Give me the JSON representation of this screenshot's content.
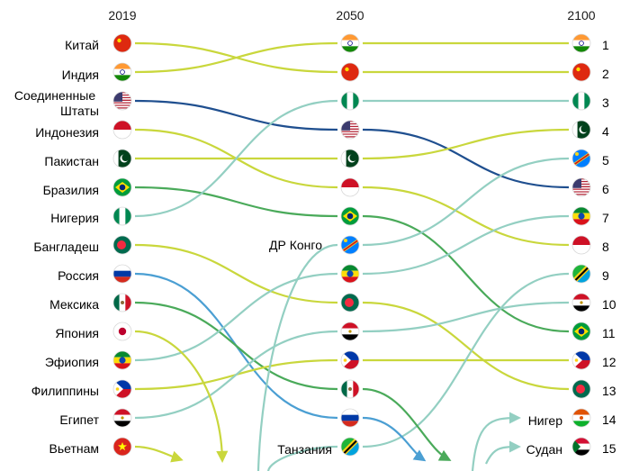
{
  "chart_data": {
    "type": "slope-ranking",
    "columns": [
      "2019",
      "2050",
      "2100"
    ],
    "country_labels_2019": [
      "Китай",
      "Индия",
      "Соединенные Штаты",
      "Индонезия",
      "Пакистан",
      "Бразилия",
      "Нигерия",
      "Бангладеш",
      "Россия",
      "Мексика",
      "Япония",
      "Эфиопия",
      "Филиппины",
      "Египет",
      "Вьетнам"
    ],
    "label_2050_drc": "ДР Конго",
    "label_2050_tanzania": "Танзания",
    "label_2100_niger": "Нигер",
    "label_2100_sudan": "Судан",
    "rank_numbers": [
      "1",
      "2",
      "3",
      "4",
      "5",
      "6",
      "7",
      "8",
      "9",
      "10",
      "11",
      "12",
      "13",
      "14",
      "15"
    ],
    "series": [
      {
        "id": "china",
        "ranks": [
          1,
          2,
          2
        ],
        "flag": "china-flag",
        "color": "#c9d73c"
      },
      {
        "id": "india",
        "ranks": [
          2,
          1,
          1
        ],
        "flag": "india-flag",
        "color": "#c9d73c"
      },
      {
        "id": "usa",
        "ranks": [
          3,
          4,
          6
        ],
        "flag": "usa-flag",
        "color": "#1f4f8f"
      },
      {
        "id": "indonesia",
        "ranks": [
          4,
          6,
          8
        ],
        "flag": "indonesia-flag",
        "color": "#c9d73c"
      },
      {
        "id": "pakistan",
        "ranks": [
          5,
          5,
          4
        ],
        "flag": "pakistan-flag",
        "color": "#c9d73c"
      },
      {
        "id": "brazil",
        "ranks": [
          6,
          7,
          11
        ],
        "flag": "brazil-flag",
        "color": "#4aaa5a"
      },
      {
        "id": "nigeria",
        "ranks": [
          7,
          3,
          3
        ],
        "flag": "nigeria-flag",
        "color": "#93cfc2"
      },
      {
        "id": "bangladesh",
        "ranks": [
          8,
          10,
          13
        ],
        "flag": "bangladesh-flag",
        "color": "#c9d73c"
      },
      {
        "id": "russia",
        "ranks": [
          9,
          14,
          null
        ],
        "flag": "russia-flag",
        "color": "#4b9fd3"
      },
      {
        "id": "mexico",
        "ranks": [
          10,
          13,
          null
        ],
        "flag": "mexico-flag",
        "color": "#4aaa5a"
      },
      {
        "id": "japan",
        "ranks": [
          11,
          null,
          null
        ],
        "flag": "japan-flag",
        "color": "#c9d73c"
      },
      {
        "id": "ethiopia",
        "ranks": [
          12,
          9,
          7
        ],
        "flag": "ethiopia-flag",
        "color": "#93cfc2"
      },
      {
        "id": "philippines",
        "ranks": [
          13,
          12,
          12
        ],
        "flag": "philippines-flag",
        "color": "#c9d73c"
      },
      {
        "id": "egypt",
        "ranks": [
          14,
          11,
          10
        ],
        "flag": "egypt-flag",
        "color": "#93cfc2"
      },
      {
        "id": "vietnam",
        "ranks": [
          15,
          null,
          null
        ],
        "flag": "vietnam-flag",
        "color": "#c9d73c"
      },
      {
        "id": "drc",
        "ranks": [
          null,
          8,
          5
        ],
        "flag": "drc-flag",
        "color": "#93cfc2"
      },
      {
        "id": "tanzania",
        "ranks": [
          null,
          15,
          9
        ],
        "flag": "tanzania-flag",
        "color": "#93cfc2"
      },
      {
        "id": "niger",
        "ranks": [
          null,
          null,
          14
        ],
        "flag": "niger-flag",
        "color": "#93cfc2"
      },
      {
        "id": "sudan",
        "ranks": [
          null,
          null,
          15
        ],
        "flag": "sudan-flag",
        "color": "#93cfc2"
      }
    ]
  }
}
